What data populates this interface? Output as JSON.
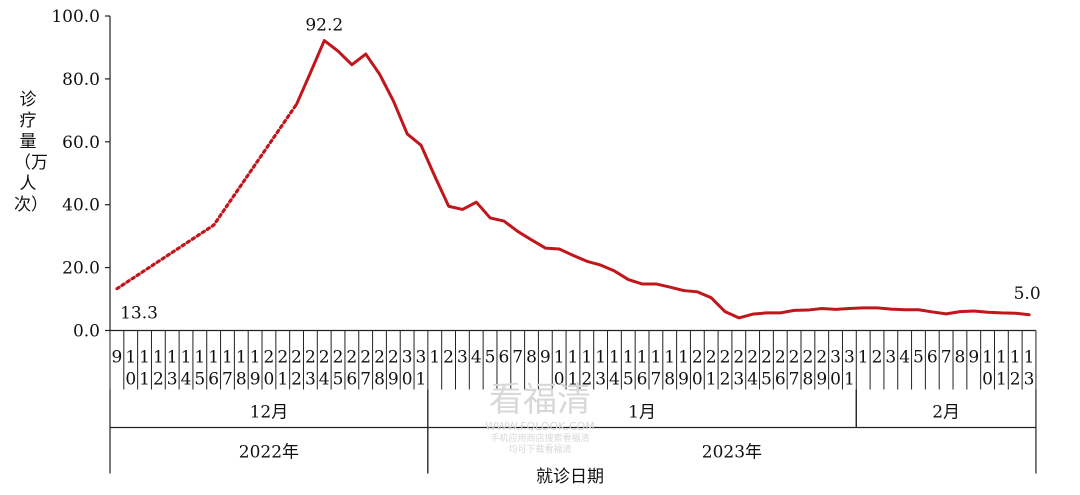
{
  "chart_data": {
    "type": "line",
    "ylabel": "诊疗量（万人次）",
    "xlabel": "就诊日期",
    "ylim": [
      0,
      100
    ],
    "yticks": [
      0,
      20,
      40,
      60,
      80,
      100
    ],
    "ytick_labels": [
      "0.0",
      "20.0",
      "40.0",
      "60.0",
      "80.0",
      "100.0"
    ],
    "day_labels": [
      "9",
      "10",
      "11",
      "12",
      "13",
      "14",
      "15",
      "16",
      "17",
      "18",
      "19",
      "20",
      "21",
      "22",
      "23",
      "24",
      "25",
      "26",
      "27",
      "28",
      "29",
      "30",
      "31",
      "1",
      "2",
      "3",
      "4",
      "5",
      "6",
      "7",
      "8",
      "9",
      "10",
      "11",
      "12",
      "13",
      "14",
      "15",
      "16",
      "17",
      "18",
      "19",
      "20",
      "21",
      "22",
      "23",
      "24",
      "25",
      "26",
      "27",
      "28",
      "29",
      "30",
      "31",
      "1",
      "2",
      "3",
      "4",
      "5",
      "6",
      "7",
      "8",
      "9",
      "10",
      "11",
      "12",
      "13"
    ],
    "months": [
      {
        "label": "12月",
        "start": 0,
        "end": 23
      },
      {
        "label": "1月",
        "start": 23,
        "end": 54
      },
      {
        "label": "2月",
        "start": 54,
        "end": 67
      }
    ],
    "years": [
      {
        "label": "2022年",
        "start": 0,
        "end": 23
      },
      {
        "label": "2023年",
        "start": 23,
        "end": 67
      }
    ],
    "dotted_segment": {
      "x": [
        "2022-12-09",
        "2022-12-16",
        "2022-12-22"
      ],
      "y": [
        13.3,
        33.5,
        72.0
      ]
    },
    "series": [
      {
        "x": [
          "2022-12-22",
          "2022-12-23",
          "2022-12-24",
          "2022-12-25",
          "2022-12-26",
          "2022-12-27",
          "2022-12-28",
          "2022-12-29",
          "2022-12-30",
          "2022-12-31",
          "2023-01-01",
          "2023-01-02",
          "2023-01-03",
          "2023-01-04",
          "2023-01-05",
          "2023-01-06",
          "2023-01-07",
          "2023-01-08",
          "2023-01-09",
          "2023-01-10",
          "2023-01-11",
          "2023-01-12",
          "2023-01-13",
          "2023-01-14",
          "2023-01-15",
          "2023-01-16",
          "2023-01-17",
          "2023-01-18",
          "2023-01-19",
          "2023-01-20",
          "2023-01-21",
          "2023-01-22",
          "2023-01-23",
          "2023-01-24",
          "2023-01-25",
          "2023-01-26",
          "2023-01-27",
          "2023-01-28",
          "2023-01-29",
          "2023-01-30",
          "2023-01-31",
          "2023-02-01",
          "2023-02-02",
          "2023-02-03",
          "2023-02-04",
          "2023-02-05",
          "2023-02-06",
          "2023-02-07",
          "2023-02-08",
          "2023-02-09",
          "2023-02-10",
          "2023-02-11",
          "2023-02-12",
          "2023-02-13"
        ],
        "values": [
          72.0,
          82.0,
          92.2,
          88.8,
          84.5,
          87.9,
          81.5,
          73.0,
          62.5,
          58.9,
          49.0,
          39.5,
          38.5,
          40.8,
          35.8,
          34.8,
          31.5,
          28.8,
          26.2,
          25.9,
          23.9,
          22.0,
          20.8,
          18.9,
          16.2,
          14.8,
          14.8,
          13.8,
          12.7,
          12.3,
          10.4,
          6.0,
          4.0,
          5.2,
          5.6,
          5.6,
          6.4,
          6.5,
          7.0,
          6.7,
          7.0,
          7.2,
          7.2,
          6.8,
          6.6,
          6.6,
          5.9,
          5.3,
          6.0,
          6.2,
          5.8,
          5.6,
          5.5,
          5.0
        ]
      }
    ],
    "annotations": [
      {
        "text": "13.3",
        "x": "2022-12-09",
        "y": 13.3
      },
      {
        "text": "92.2",
        "x": "2022-12-24",
        "y": 92.2
      },
      {
        "text": "5.0",
        "x": "2023-02-13",
        "y": 5.0
      }
    ],
    "line_color": "#c0161c",
    "axis_color": "#222222"
  },
  "watermark": {
    "title": "看福清",
    "url": "WWW.FQLOOK.COM",
    "note_1": "手机应用商店搜索看福清",
    "note_2": "均可下载看福清"
  }
}
